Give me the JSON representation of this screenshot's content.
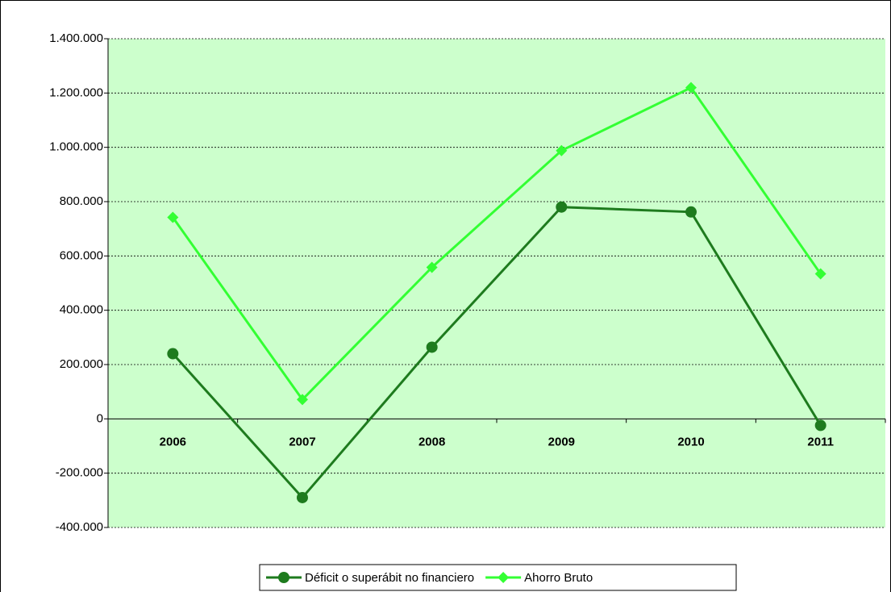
{
  "chart_data": {
    "type": "line",
    "categories": [
      "2006",
      "2007",
      "2008",
      "2009",
      "2010",
      "2011"
    ],
    "series": [
      {
        "name": "Déficit o superábit no financiero",
        "color": "#1e7b1e",
        "marker": "circle",
        "values": [
          240000,
          -290000,
          264000,
          780000,
          762000,
          -24000
        ]
      },
      {
        "name": "Ahorro Bruto",
        "color": "#33ff33",
        "marker": "diamond",
        "values": [
          742000,
          71000,
          558000,
          988000,
          1220000,
          534000
        ]
      }
    ],
    "ylim": [
      -400000,
      1400000
    ],
    "yticks": [
      {
        "value": -400000,
        "label": "-400.000"
      },
      {
        "value": -200000,
        "label": "-200.000"
      },
      0,
      {
        "value": 200000,
        "label": "200.000"
      },
      {
        "value": 400000,
        "label": "400.000"
      },
      {
        "value": 600000,
        "label": "600.000"
      },
      {
        "value": 800000,
        "label": "800.000"
      },
      {
        "value": 1000000,
        "label": "1.000.000"
      },
      {
        "value": 1200000,
        "label": "1.200.000"
      },
      {
        "value": 1400000,
        "label": "1.400.000"
      }
    ],
    "grid": true,
    "legend": "bottom"
  }
}
